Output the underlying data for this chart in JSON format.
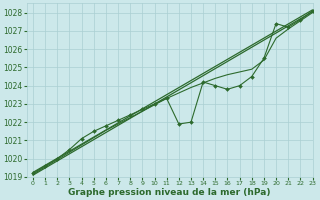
{
  "bg_color": "#cce8ea",
  "grid_color": "#aacfd2",
  "line_color": "#2d6a2d",
  "xlabel": "Graphe pression niveau de la mer (hPa)",
  "ylim": [
    1019,
    1028.5
  ],
  "xlim": [
    -0.5,
    23
  ],
  "yticks": [
    1019,
    1020,
    1021,
    1022,
    1023,
    1024,
    1025,
    1026,
    1027,
    1028
  ],
  "xticks": [
    0,
    1,
    2,
    3,
    4,
    5,
    6,
    7,
    8,
    9,
    10,
    11,
    12,
    13,
    14,
    15,
    16,
    17,
    18,
    19,
    20,
    21,
    22,
    23
  ],
  "series_main_x": [
    0,
    1,
    2,
    3,
    4,
    5,
    6,
    7,
    8,
    9,
    10,
    11,
    12,
    13,
    14,
    15,
    16,
    17,
    18,
    19,
    20,
    21,
    22,
    23
  ],
  "series_main_y": [
    1019.2,
    1019.6,
    1020.0,
    1020.5,
    1021.1,
    1021.5,
    1021.8,
    1022.1,
    1022.4,
    1022.7,
    1023.0,
    1023.3,
    1021.9,
    1022.0,
    1024.2,
    1024.0,
    1023.8,
    1024.0,
    1024.5,
    1025.5,
    1027.4,
    1027.2,
    1027.6,
    1028.1
  ],
  "series_smooth_x": [
    0,
    1,
    2,
    3,
    4,
    5,
    6,
    7,
    8,
    9,
    10,
    11,
    12,
    13,
    14,
    15,
    16,
    17,
    18,
    19,
    20,
    21,
    22,
    23
  ],
  "series_smooth_y": [
    1019.15,
    1019.55,
    1019.95,
    1020.35,
    1020.75,
    1021.15,
    1021.55,
    1021.9,
    1022.25,
    1022.6,
    1022.95,
    1023.3,
    1023.6,
    1023.9,
    1024.15,
    1024.4,
    1024.6,
    1024.75,
    1024.9,
    1025.4,
    1026.6,
    1027.1,
    1027.55,
    1028.0
  ],
  "line1_x": [
    0,
    23
  ],
  "line1_y": [
    1019.1,
    1028.05
  ],
  "line2_x": [
    0,
    23
  ],
  "line2_y": [
    1019.25,
    1028.15
  ],
  "markersize": 2.0,
  "title_fontsize": 6,
  "tick_fontsize": 5.5,
  "xlabel_fontsize": 6.5
}
